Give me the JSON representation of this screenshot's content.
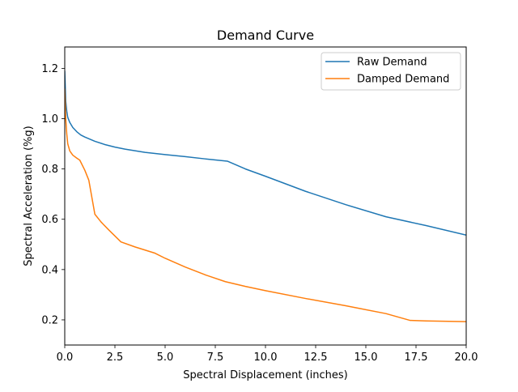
{
  "chart_data": {
    "type": "line",
    "title": "Demand Curve",
    "xlabel": "Spectral Displacement (inches)",
    "ylabel": "Spectral Acceleration (%g)",
    "xlim": [
      0.0,
      20.0
    ],
    "ylim": [
      0.1,
      1.285
    ],
    "xticks": [
      {
        "value": 0.0,
        "label": "0.0"
      },
      {
        "value": 2.5,
        "label": "2.5"
      },
      {
        "value": 5.0,
        "label": "5.0"
      },
      {
        "value": 7.5,
        "label": "7.5"
      },
      {
        "value": 10.0,
        "label": "10.0"
      },
      {
        "value": 12.5,
        "label": "12.5"
      },
      {
        "value": 15.0,
        "label": "15.0"
      },
      {
        "value": 17.5,
        "label": "17.5"
      },
      {
        "value": 20.0,
        "label": "20.0"
      }
    ],
    "yticks": [
      {
        "value": 0.2,
        "label": "0.2"
      },
      {
        "value": 0.4,
        "label": "0.4"
      },
      {
        "value": 0.6,
        "label": "0.6"
      },
      {
        "value": 0.8,
        "label": "0.8"
      },
      {
        "value": 1.0,
        "label": "1.0"
      },
      {
        "value": 1.2,
        "label": "1.2"
      }
    ],
    "grid": false,
    "legend_position": "top-right",
    "series": [
      {
        "name": "Raw Demand",
        "color": "#1f77b4",
        "x": [
          0.0,
          0.05,
          0.1,
          0.15,
          0.25,
          0.4,
          0.6,
          0.8,
          1.0,
          1.5,
          2.0,
          2.5,
          3.0,
          4.0,
          5.0,
          6.0,
          7.0,
          8.1,
          9.0,
          10.0,
          12.0,
          14.0,
          16.0,
          18.0,
          20.0
        ],
        "y": [
          1.19,
          1.07,
          1.03,
          1.005,
          0.985,
          0.965,
          0.948,
          0.935,
          0.927,
          0.91,
          0.897,
          0.887,
          0.879,
          0.866,
          0.857,
          0.849,
          0.84,
          0.831,
          0.8,
          0.771,
          0.711,
          0.658,
          0.61,
          0.575,
          0.537
        ]
      },
      {
        "name": "Damped Demand",
        "color": "#ff7f0e",
        "x": [
          0.0,
          0.05,
          0.1,
          0.15,
          0.25,
          0.4,
          0.6,
          0.75,
          1.0,
          1.2,
          1.5,
          1.8,
          2.2,
          2.8,
          3.5,
          4.5,
          5.0,
          6.0,
          7.0,
          8.0,
          9.0,
          10.0,
          12.0,
          14.0,
          16.0,
          17.2,
          18.0,
          20.0
        ],
        "y": [
          1.12,
          1.0,
          0.94,
          0.9,
          0.872,
          0.855,
          0.843,
          0.835,
          0.795,
          0.755,
          0.62,
          0.59,
          0.557,
          0.51,
          0.49,
          0.465,
          0.445,
          0.41,
          0.379,
          0.352,
          0.333,
          0.316,
          0.285,
          0.256,
          0.225,
          0.198,
          0.196,
          0.193
        ]
      }
    ]
  }
}
